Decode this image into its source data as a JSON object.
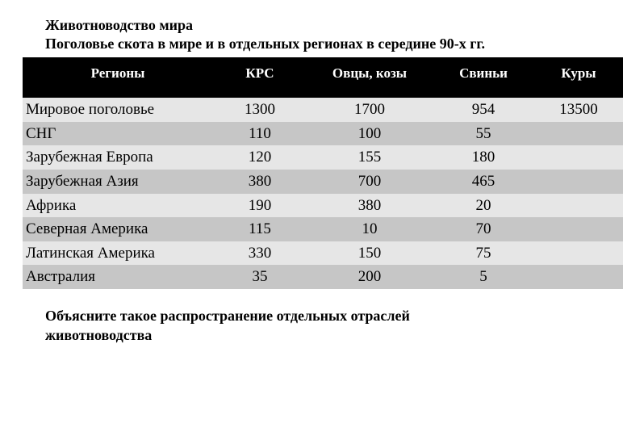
{
  "title_line1": "Животноводство мира",
  "title_line2": "Поголовье  скота в мире и в отдельных регионах в середине  90-х гг.",
  "table": {
    "columns": [
      "Регионы",
      "КРС",
      "Овцы, козы",
      "Свиньи",
      "Куры"
    ],
    "rows": [
      [
        "Мировое поголовье",
        "1300",
        "1700",
        "954",
        "13500"
      ],
      [
        "СНГ",
        "110",
        "100",
        "55",
        ""
      ],
      [
        "Зарубежная Европа",
        "120",
        "155",
        "180",
        ""
      ],
      [
        "Зарубежная Азия",
        "380",
        "700",
        "465",
        ""
      ],
      [
        "Африка",
        "190",
        "380",
        "20",
        ""
      ],
      [
        "Северная Америка",
        "115",
        "10",
        "70",
        ""
      ],
      [
        "Латинская Америка",
        "330",
        "150",
        "75",
        ""
      ],
      [
        "Австралия",
        "35",
        "200",
        "5",
        ""
      ]
    ],
    "header_bg": "#000000",
    "header_fg": "#ffffff",
    "row_odd_bg": "#e6e6e6",
    "row_even_bg": "#c6c6c6",
    "font_family": "Times New Roman",
    "header_fontsize_pt": 13,
    "cell_fontsize_pt": 14
  },
  "footnote_line1": "Объясните такое распространение отдельных отраслей",
  "footnote_line2": "животноводства"
}
